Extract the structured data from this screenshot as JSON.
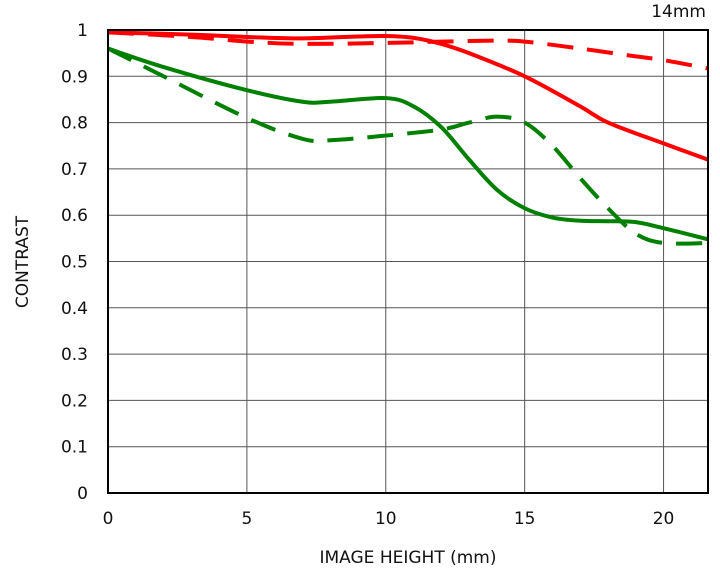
{
  "chart_data": {
    "type": "line",
    "title": "14mm",
    "xlabel": "IMAGE HEIGHT (mm)",
    "ylabel": "CONTRAST",
    "xlim": [
      0,
      21.6
    ],
    "ylim": [
      0,
      1
    ],
    "xticks": [
      0,
      5,
      10,
      15,
      20
    ],
    "yticks": [
      0,
      0.1,
      0.2,
      0.3,
      0.4,
      0.5,
      0.6,
      0.7,
      0.8,
      0.9,
      1
    ],
    "ytick_labels": [
      "0",
      "0.1",
      "0.2",
      "0.3",
      "0.4",
      "0.5",
      "0.6",
      "0.7",
      "0.8",
      "0.9",
      "1"
    ],
    "grid": true,
    "series": [
      {
        "color": "#ff0000",
        "style": "solid",
        "x": [
          0,
          3,
          5,
          7,
          9,
          10,
          11,
          12,
          13,
          15,
          17,
          18,
          20,
          21.6
        ],
        "y": [
          0.995,
          0.99,
          0.985,
          0.982,
          0.986,
          0.987,
          0.983,
          0.97,
          0.95,
          0.9,
          0.835,
          0.8,
          0.755,
          0.72
        ]
      },
      {
        "color": "#ff0000",
        "style": "dashed",
        "x": [
          0,
          3,
          5,
          7,
          10,
          12,
          14,
          15,
          17,
          19,
          20,
          21.6
        ],
        "y": [
          0.995,
          0.985,
          0.975,
          0.97,
          0.972,
          0.975,
          0.977,
          0.975,
          0.96,
          0.943,
          0.935,
          0.917
        ]
      },
      {
        "color": "#008000",
        "style": "solid",
        "x": [
          0,
          2,
          5,
          7,
          8,
          10,
          11,
          12,
          13,
          14,
          15,
          16,
          17,
          18,
          19,
          20,
          21.6
        ],
        "y": [
          0.96,
          0.92,
          0.87,
          0.845,
          0.845,
          0.853,
          0.835,
          0.79,
          0.72,
          0.655,
          0.615,
          0.595,
          0.588,
          0.587,
          0.585,
          0.572,
          0.548
        ]
      },
      {
        "color": "#008000",
        "style": "dashed",
        "x": [
          0,
          2,
          5,
          7,
          8,
          10,
          12,
          13,
          14,
          15,
          16,
          17,
          18,
          19,
          20,
          21.6
        ],
        "y": [
          0.96,
          0.9,
          0.81,
          0.765,
          0.762,
          0.772,
          0.785,
          0.8,
          0.813,
          0.8,
          0.75,
          0.68,
          0.615,
          0.56,
          0.54,
          0.54
        ]
      }
    ]
  }
}
